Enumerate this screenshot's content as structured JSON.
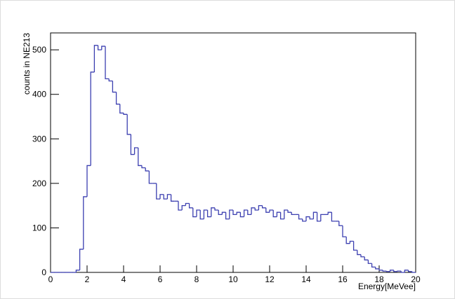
{
  "chart_data": {
    "type": "histogram",
    "xlabel": "Energy[MeVee]",
    "ylabel": "counts in NE213",
    "color": "#3b3fb0",
    "bins": [
      0,
      0.2,
      0.4,
      0.6,
      0.8,
      1,
      1.2,
      1.4,
      1.6,
      1.8,
      2,
      2.2,
      2.4,
      2.6,
      2.8,
      3,
      3.2,
      3.4,
      3.6,
      3.8,
      4,
      4.2,
      4.4,
      4.6,
      4.8,
      5,
      5.2,
      5.4,
      5.6,
      5.8,
      6,
      6.2,
      6.4,
      6.6,
      6.8,
      7,
      7.2,
      7.4,
      7.6,
      7.8,
      8,
      8.2,
      8.4,
      8.6,
      8.8,
      9,
      9.2,
      9.4,
      9.6,
      9.8,
      10,
      10.2,
      10.4,
      10.6,
      10.8,
      11,
      11.2,
      11.4,
      11.6,
      11.8,
      12,
      12.2,
      12.4,
      12.6,
      12.8,
      13,
      13.2,
      13.4,
      13.6,
      13.8,
      14,
      14.2,
      14.4,
      14.6,
      14.8,
      15,
      15.2,
      15.4,
      15.6,
      15.8,
      16,
      16.2,
      16.4,
      16.6,
      16.8,
      17,
      17.2,
      17.4,
      17.6,
      17.8,
      18,
      18.2,
      18.4,
      18.6,
      18.8,
      19,
      19.2,
      19.4,
      19.6,
      19.8,
      20
    ],
    "values": [
      0,
      0,
      0,
      0,
      0,
      0,
      0,
      5,
      52,
      170,
      240,
      450,
      510,
      500,
      508,
      435,
      430,
      405,
      378,
      358,
      355,
      310,
      265,
      280,
      240,
      235,
      228,
      200,
      200,
      165,
      175,
      165,
      175,
      160,
      160,
      140,
      150,
      155,
      145,
      125,
      140,
      120,
      140,
      125,
      145,
      140,
      130,
      135,
      120,
      140,
      130,
      135,
      125,
      140,
      130,
      145,
      140,
      150,
      145,
      135,
      140,
      125,
      135,
      120,
      140,
      135,
      130,
      130,
      120,
      115,
      125,
      120,
      135,
      115,
      130,
      130,
      135,
      115,
      115,
      105,
      80,
      65,
      70,
      50,
      40,
      35,
      28,
      20,
      12,
      8,
      5,
      3,
      2,
      5,
      2,
      3,
      0,
      5,
      2,
      0
    ],
    "xlim": [
      0,
      20
    ],
    "ylim": [
      0,
      538
    ],
    "xticks": [
      0,
      2,
      4,
      6,
      8,
      10,
      12,
      14,
      16,
      18,
      20
    ],
    "yticks": [
      0,
      100,
      200,
      300,
      400,
      500
    ]
  }
}
